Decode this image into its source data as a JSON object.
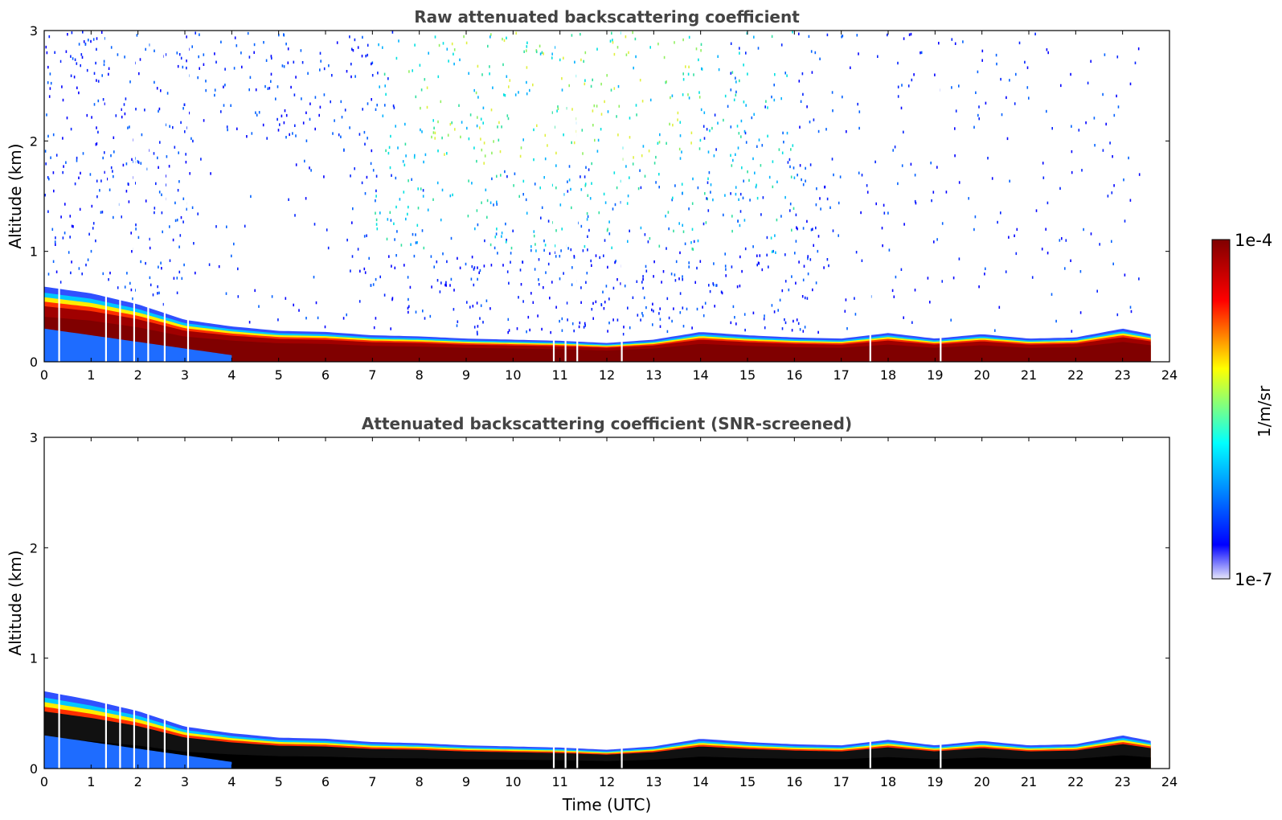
{
  "chart_data": [
    {
      "type": "heatmap",
      "title": "Raw attenuated backscattering coefficient",
      "xlabel": "",
      "ylabel": "Altitude (km)",
      "xlim": [
        0,
        24
      ],
      "ylim": [
        0,
        3
      ],
      "xticks": [
        "0",
        "1",
        "2",
        "3",
        "4",
        "5",
        "6",
        "7",
        "8",
        "9",
        "10",
        "11",
        "12",
        "13",
        "14",
        "15",
        "16",
        "17",
        "18",
        "19",
        "20",
        "21",
        "22",
        "23",
        "24"
      ],
      "yticks": [
        "0",
        "1",
        "2",
        "3"
      ],
      "data_end_hour": 23.6,
      "boundary_layer_top_km": {
        "x": [
          0,
          1,
          2,
          3,
          4,
          5,
          6,
          7,
          8,
          9,
          10,
          11,
          12,
          13,
          14,
          15,
          16,
          17,
          18,
          19,
          20,
          21,
          22,
          23,
          23.6
        ],
        "y": [
          0.68,
          0.62,
          0.52,
          0.38,
          0.32,
          0.28,
          0.27,
          0.24,
          0.23,
          0.21,
          0.2,
          0.19,
          0.17,
          0.2,
          0.27,
          0.24,
          0.22,
          0.21,
          0.26,
          0.21,
          0.25,
          0.21,
          0.22,
          0.3,
          0.25
        ]
      },
      "note": "Noisy high-altitude scatter up to 3 km; strong aerosol layer below ~0.7 km"
    },
    {
      "type": "heatmap",
      "title": "Attenuated backscattering coefficient (SNR-screened)",
      "xlabel": "Time (UTC)",
      "ylabel": "Altitude (km)",
      "xlim": [
        0,
        24
      ],
      "ylim": [
        0,
        3
      ],
      "xticks": [
        "0",
        "1",
        "2",
        "3",
        "4",
        "5",
        "6",
        "7",
        "8",
        "9",
        "10",
        "11",
        "12",
        "13",
        "14",
        "15",
        "16",
        "17",
        "18",
        "19",
        "20",
        "21",
        "22",
        "23",
        "24"
      ],
      "yticks": [
        "0",
        "1",
        "2",
        "3"
      ],
      "data_end_hour": 23.6,
      "boundary_layer_top_km": {
        "x": [
          0,
          1,
          2,
          3,
          4,
          5,
          6,
          7,
          8,
          9,
          10,
          11,
          12,
          13,
          14,
          15,
          16,
          17,
          18,
          19,
          20,
          21,
          22,
          23,
          23.6
        ],
        "y": [
          0.7,
          0.62,
          0.52,
          0.38,
          0.32,
          0.28,
          0.27,
          0.24,
          0.23,
          0.21,
          0.2,
          0.19,
          0.17,
          0.2,
          0.27,
          0.24,
          0.22,
          0.21,
          0.26,
          0.21,
          0.25,
          0.21,
          0.22,
          0.3,
          0.25
        ]
      },
      "note": "Only the boundary-layer signal survives screening"
    }
  ],
  "colorbar": {
    "label": "1/m/sr",
    "max_label": "1e-4",
    "min_label": "1e-7",
    "scale": "log",
    "colors": [
      "#e6e6fa",
      "#0000ff",
      "#00ffff",
      "#ffff00",
      "#ff0000",
      "#800000"
    ]
  }
}
